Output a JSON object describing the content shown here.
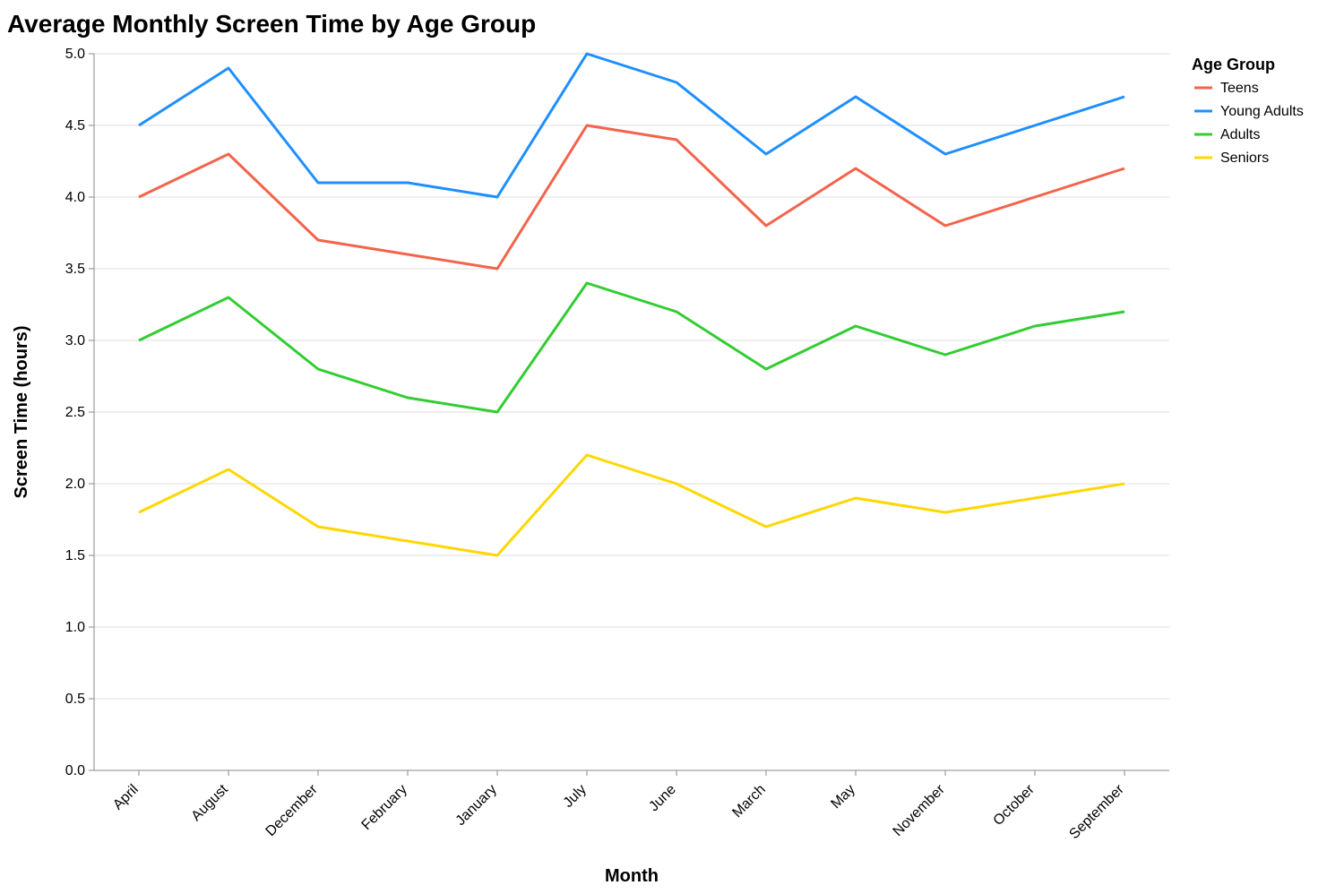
{
  "chart_data": {
    "type": "line",
    "title": "Average Monthly Screen Time by Age Group",
    "xlabel": "Month",
    "ylabel": "Screen Time (hours)",
    "categories": [
      "April",
      "August",
      "December",
      "February",
      "January",
      "July",
      "June",
      "March",
      "May",
      "November",
      "October",
      "September"
    ],
    "ylim": [
      0,
      5
    ],
    "yticks": [
      "0.0",
      "0.5",
      "1.0",
      "1.5",
      "2.0",
      "2.5",
      "3.0",
      "3.5",
      "4.0",
      "4.5",
      "5.0"
    ],
    "grid": true,
    "legend_title": "Age Group",
    "legend_position": "right",
    "series": [
      {
        "name": "Teens",
        "color": "#f4634b",
        "values": [
          4.0,
          4.3,
          3.7,
          3.6,
          3.5,
          4.5,
          4.4,
          3.8,
          4.2,
          3.8,
          4.0,
          4.2
        ]
      },
      {
        "name": "Young Adults",
        "color": "#1e8fff",
        "values": [
          4.5,
          4.9,
          4.1,
          4.1,
          4.0,
          5.0,
          4.8,
          4.3,
          4.7,
          4.3,
          4.5,
          4.7
        ]
      },
      {
        "name": "Adults",
        "color": "#32cd32",
        "values": [
          3.0,
          3.3,
          2.8,
          2.6,
          2.5,
          3.4,
          3.2,
          2.8,
          3.1,
          2.9,
          3.1,
          3.2
        ]
      },
      {
        "name": "Seniors",
        "color": "#ffd700",
        "values": [
          1.8,
          2.1,
          1.7,
          1.6,
          1.5,
          2.2,
          2.0,
          1.7,
          1.9,
          1.8,
          1.9,
          2.0
        ]
      }
    ]
  }
}
